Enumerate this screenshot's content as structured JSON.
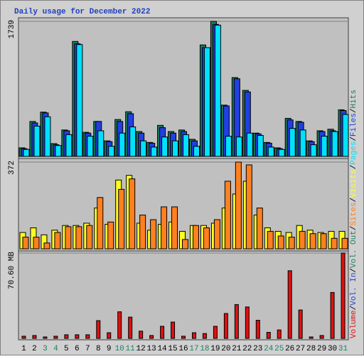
{
  "chart_data": {
    "type": "bar",
    "title": "Daily usage for December 2022",
    "categories": [
      "1",
      "2",
      "3",
      "4",
      "5",
      "6",
      "7",
      "8",
      "9",
      "10",
      "11",
      "12",
      "13",
      "14",
      "15",
      "16",
      "17",
      "18",
      "19",
      "20",
      "21",
      "22",
      "23",
      "24",
      "25",
      "26",
      "27",
      "28",
      "29",
      "30",
      "31"
    ],
    "category_colors": [
      "#000000",
      "#000000",
      "#208060",
      "#208060",
      "#000000",
      "#000000",
      "#000000",
      "#000000",
      "#000000",
      "#208060",
      "#208060",
      "#000000",
      "#000000",
      "#000000",
      "#000000",
      "#000000",
      "#208060",
      "#208060",
      "#000000",
      "#000000",
      "#000000",
      "#000000",
      "#000000",
      "#208060",
      "#208060",
      "#000000",
      "#000000",
      "#000000",
      "#000000",
      "#000000",
      "#208060"
    ],
    "legend_separator": "/",
    "panels": [
      {
        "ylim": [
          0,
          1739
        ],
        "yticks": [
          1739
        ],
        "series": [
          {
            "name": "Hits",
            "color": "#1e7a5a",
            "values": [
              110,
              450,
              570,
              165,
              340,
              1480,
              310,
              450,
              200,
              475,
              575,
              320,
              180,
              400,
              320,
              340,
              220,
              1435,
              1739,
              660,
              1015,
              850,
              300,
              180,
              110,
              490,
              450,
              200,
              330,
              350,
              600
            ]
          },
          {
            "name": "Files",
            "color": "#2040e0",
            "values": [
              100,
              430,
              560,
              150,
              330,
              1450,
              300,
              450,
              190,
              450,
              550,
              300,
              170,
              370,
              300,
              320,
              200,
              1400,
              1700,
              650,
              1000,
              830,
              290,
              170,
              100,
              470,
              440,
              190,
              320,
              330,
              590
            ]
          },
          {
            "name": "Pages",
            "color": "#00e0ff",
            "values": [
              90,
              390,
              510,
              140,
              280,
              1440,
              260,
              330,
              130,
              300,
              380,
              200,
              120,
              250,
              200,
              280,
              130,
              1400,
              1690,
              260,
              250,
              300,
              270,
              120,
              90,
              360,
              340,
              150,
              260,
              320,
              540
            ]
          }
        ]
      },
      {
        "ylim": [
          0,
          372
        ],
        "yticks": [
          372
        ],
        "series": [
          {
            "name": "Visits",
            "color": "#ffff20",
            "values": [
              70,
              90,
              60,
              80,
              100,
              100,
              110,
              175,
              105,
              295,
              315,
              110,
              80,
              105,
              115,
              75,
              100,
              100,
              110,
              175,
              235,
              290,
              145,
              90,
              75,
              70,
              100,
              80,
              70,
              75,
              75
            ]
          },
          {
            "name": "Sites",
            "color": "#ff8020",
            "values": [
              50,
              50,
              25,
              70,
              95,
              95,
              100,
              220,
              115,
              255,
              300,
              145,
              125,
              180,
              180,
              40,
              100,
              90,
              125,
              290,
              372,
              360,
              175,
              75,
              55,
              50,
              75,
              65,
              65,
              45,
              45
            ]
          }
        ]
      },
      {
        "ylim": [
          0,
          70.6
        ],
        "yticks": [
          {
            "value": 70.6,
            "label": "70.60 MB"
          }
        ],
        "series": [
          {
            "name": "Volume",
            "color": "#e01010",
            "values": [
              1.8,
              2.4,
              1.2,
              1.8,
              3,
              3,
              3,
              14.7,
              4.7,
              22,
              17.6,
              6,
              2.4,
              10,
              13.5,
              1.8,
              4.7,
              4,
              10,
              20.6,
              28,
              26,
              15,
              5,
              7,
              56,
              23.5,
              1.2,
              2.4,
              38,
              70.6
            ]
          }
        ]
      }
    ],
    "extra_legend": [
      {
        "name": "Vol. In",
        "color": "#2040e0"
      },
      {
        "name": "Vol. Out",
        "color": "#208060"
      }
    ]
  }
}
